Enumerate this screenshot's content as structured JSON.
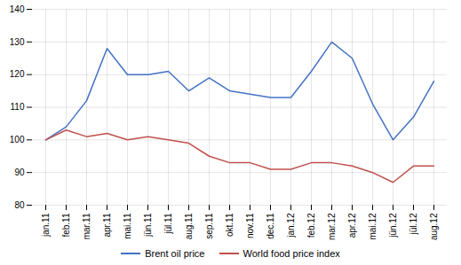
{
  "chart_data": {
    "type": "line",
    "categories": [
      "jan.11",
      "feb.11",
      "mar.11",
      "apr.11",
      "mai.11",
      "jün.11",
      "jül.11",
      "aug.11",
      "sep.11",
      "okt.11",
      "nov.11",
      "dec.11",
      "jan.12",
      "feb.12",
      "mar.12",
      "apr.12",
      "mai.12",
      "jün.12",
      "jül.12",
      "aug.12"
    ],
    "series": [
      {
        "name": "Brent oil price",
        "color": "#4472C4",
        "values": [
          100,
          104,
          112,
          128,
          120,
          120,
          121,
          115,
          119,
          115,
          114,
          113,
          113,
          121,
          130,
          125,
          111,
          100,
          107,
          118
        ]
      },
      {
        "name": "World food price index",
        "color": "#C0504D",
        "values": [
          100,
          103,
          101,
          102,
          100,
          101,
          100,
          99,
          95,
          93,
          93,
          91,
          91,
          93,
          93,
          92,
          90,
          87,
          92,
          92
        ]
      }
    ],
    "ylim": [
      80,
      140
    ],
    "yticks": [
      80,
      90,
      100,
      110,
      120,
      130,
      140
    ],
    "grid": true,
    "legend": "bottom"
  }
}
